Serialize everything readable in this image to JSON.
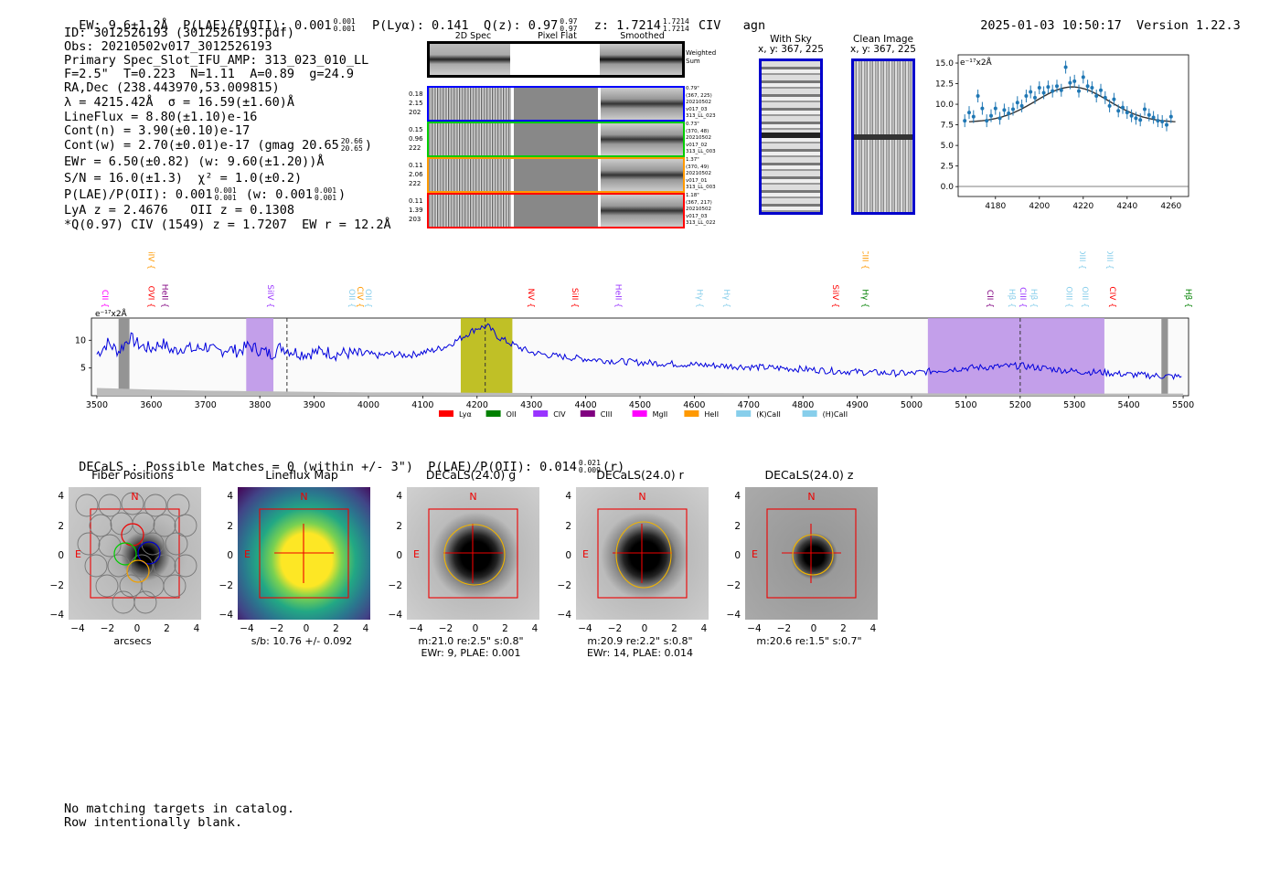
{
  "header": {
    "ew": "EW: 9.6±1.2Å",
    "plae_label": "P(LAE)/P(OII): 0.001",
    "plae_hi": "0.001",
    "plae_lo": "0.001",
    "plya": "P(Lyα): 0.141",
    "qz_label": "Q(z): 0.97",
    "qz_hi": "0.97",
    "qz_lo": "0.97",
    "z_label": "z: 1.7214",
    "z_hi": "1.7214",
    "z_lo": "1.7214",
    "line": "CIV",
    "type": "agn",
    "timestamp": "2025-01-03 10:50:17",
    "version": "Version 1.22.3"
  },
  "info": {
    "id": "ID: 3012526193 (3012526193.pdf)",
    "obs": "Obs: 20210502v017_3012526193",
    "primary": "Primary Spec_Slot_IFU_AMP: 313_023_010_LL",
    "params": "F=2.5\"  T=0.223  N=1.11  A=0.89  g=24.9",
    "radec": "RA,Dec (238.443970,53.009815)",
    "lambda": "λ = 4215.42Å  σ = 16.59(±1.60)Å",
    "lineflux": "LineFlux = 8.80(±1.10)e-16",
    "contn": "Cont(n) = 3.90(±0.10)e-17",
    "contw": "Cont(w) = 2.70(±0.01)e-17 (gmag 20.65",
    "contw_hi": "20.66",
    "contw_lo": "20.65",
    "contw_end": ")",
    "ewr": "EWr = 6.50(±0.82) (w: 9.60(±1.20))Å",
    "sn": "S/N = 16.0(±1.3)  χ² = 1.0(±0.2)",
    "plae": "P(LAE)/P(OII): 0.001",
    "plae_hi": "0.001",
    "plae_lo": "0.001",
    "plae_w": "(w: 0.001",
    "plae_w_hi": "0.001",
    "plae_w_lo": "0.001",
    "plae_w_end": ")",
    "lya": "LyA z = 2.4676   OII z = 0.1308",
    "civ": "*Q(0.97) CIV (1549) z = 1.7207  EW r = 12.2Å"
  },
  "spec2d": {
    "headers": [
      "2D Spec",
      "Pixel Flat",
      "Smoothed"
    ],
    "weighted_label": "Weighted Sum",
    "rows": [
      {
        "left": [
          "0.18",
          "2.15",
          "202"
        ],
        "right": [
          "0.79\"",
          "(367, 225)",
          "20210502",
          "v017_03",
          "313_LL_023"
        ],
        "color": "#0000ff"
      },
      {
        "left": [
          "0.15",
          "0.96",
          "222"
        ],
        "right": [
          "0.73\"",
          "(370, 48)",
          "20210502",
          "v017_02",
          "313_LL_003"
        ],
        "color": "#00cc00"
      },
      {
        "left": [
          "0.11",
          "2.06",
          "222"
        ],
        "right": [
          "1.37\"",
          "(370, 49)",
          "20210502",
          "v017_01",
          "313_LL_003"
        ],
        "color": "#ff9900"
      },
      {
        "left": [
          "0.11",
          "1.39",
          "203"
        ],
        "right": [
          "1.18\"",
          "(367, 217)",
          "20210502",
          "v017_03",
          "313_LL_022"
        ],
        "color": "#ff0000"
      }
    ]
  },
  "sky": {
    "with_sky": "With Sky",
    "with_sky_xy": "x, y: 367, 225",
    "clean": "Clean Image",
    "clean_xy": "x, y: 367, 225"
  },
  "zoom_plot": {
    "unit": "e⁻¹⁷x2Å",
    "yticks": [
      "15.0",
      "12.5",
      "10.0",
      "7.5",
      "5.0",
      "2.5",
      "0.0"
    ],
    "xticks": [
      "4180",
      "4200",
      "4220",
      "4240",
      "4260"
    ]
  },
  "chart_data": {
    "type": "line",
    "title": "",
    "ylabel": "e⁻¹⁷x2Å",
    "xlabel": "",
    "xlim": [
      3490,
      5510
    ],
    "ylim": [
      0,
      14
    ],
    "xticks": [
      3500,
      3600,
      3700,
      3800,
      3900,
      4000,
      4100,
      4200,
      4300,
      4400,
      4500,
      4600,
      4700,
      4800,
      4900,
      5000,
      5100,
      5200,
      5300,
      5400,
      5500
    ],
    "yticks": [
      5,
      10
    ],
    "series": [
      {
        "name": "flux",
        "color": "#0000dd",
        "x": [
          3500,
          3520,
          3540,
          3560,
          3580,
          3600,
          3620,
          3640,
          3660,
          3680,
          3700,
          3720,
          3740,
          3760,
          3780,
          3800,
          3820,
          3840,
          3860,
          3880,
          3900,
          3920,
          3940,
          3960,
          3980,
          4000,
          4020,
          4040,
          4060,
          4080,
          4100,
          4120,
          4140,
          4160,
          4180,
          4200,
          4220,
          4240,
          4260,
          4280,
          4300,
          4340,
          4380,
          4420,
          4460,
          4500,
          4550,
          4600,
          4650,
          4700,
          4750,
          4800,
          4850,
          4900,
          4950,
          5000,
          5050,
          5100,
          5150,
          5200,
          5250,
          5300,
          5350,
          5400,
          5450,
          5500
        ],
        "y": [
          7.5,
          9.5,
          8,
          10.5,
          9,
          8.5,
          9.5,
          8,
          8.8,
          8.2,
          9,
          7.8,
          8.5,
          8,
          9,
          8.2,
          7.5,
          8.8,
          8,
          7.6,
          7.8,
          8,
          7.5,
          7.7,
          7.4,
          7.5,
          7.2,
          7.6,
          7.3,
          7.4,
          7.8,
          8.2,
          8.8,
          9.8,
          11,
          12.2,
          12.5,
          10.5,
          9.5,
          8.6,
          7.8,
          7.2,
          6.8,
          6.5,
          6.2,
          6,
          5.8,
          5.6,
          5.4,
          5.2,
          5,
          4.8,
          4.5,
          4.3,
          4.1,
          4,
          4.6,
          5,
          5.2,
          5.4,
          4.9,
          4.4,
          4.2,
          3.8,
          3.6,
          3.4
        ]
      },
      {
        "name": "sky",
        "color": "#bbbbbb",
        "x": [
          3500,
          3600,
          3700,
          3800,
          3900,
          4000,
          4100,
          4200,
          4300,
          4400,
          4500,
          4600,
          4700,
          4800,
          4900,
          5000,
          5100,
          5200,
          5300,
          5400,
          5500
        ],
        "y": [
          1.4,
          1.1,
          0.9,
          0.8,
          0.7,
          0.6,
          0.6,
          0.55,
          0.5,
          0.5,
          0.5,
          0.5,
          0.45,
          0.45,
          0.45,
          0.45,
          0.4,
          0.4,
          0.4,
          0.4,
          0.4
        ]
      }
    ],
    "shaded_regions": [
      {
        "from": 3775,
        "to": 3825,
        "color": "#b98ee6"
      },
      {
        "from": 4170,
        "to": 4265,
        "color": "#b5b500"
      },
      {
        "from": 5030,
        "to": 5355,
        "color": "#b98ee6"
      },
      {
        "from": 3540,
        "to": 3560,
        "color": "#888888"
      },
      {
        "from": 5460,
        "to": 5472,
        "color": "#888888"
      }
    ],
    "vlines": [
      3850,
      4215,
      5200
    ],
    "line_labels": [
      {
        "x": 3505,
        "text": "CII",
        "color": "#ff00ff",
        "row": 1
      },
      {
        "x": 3590,
        "text": "SiIV",
        "color": "#ff9900",
        "row": 0
      },
      {
        "x": 3590,
        "text": "OVI",
        "color": "#ff0000",
        "row": 1
      },
      {
        "x": 3615,
        "text": "HeII",
        "color": "#800080",
        "row": 1
      },
      {
        "x": 3810,
        "text": "SiIV",
        "color": "#9933ff",
        "row": 1
      },
      {
        "x": 3960,
        "text": "OII",
        "color": "#87ceeb",
        "row": 1
      },
      {
        "x": 3975,
        "text": "CIV",
        "color": "#ff9900",
        "row": 1
      },
      {
        "x": 3990,
        "text": "OII",
        "color": "#87ceeb",
        "row": 1
      },
      {
        "x": 4290,
        "text": "NV",
        "color": "#ff0000",
        "row": 1
      },
      {
        "x": 4370,
        "text": "SiII",
        "color": "#ff0000",
        "row": 1
      },
      {
        "x": 4450,
        "text": "HeII",
        "color": "#9933ff",
        "row": 1
      },
      {
        "x": 4600,
        "text": "Hγ",
        "color": "#87ceeb",
        "row": 1
      },
      {
        "x": 4650,
        "text": "Hγ",
        "color": "#87ceeb",
        "row": 1
      },
      {
        "x": 4850,
        "text": "SiIV",
        "color": "#ff0000",
        "row": 1
      },
      {
        "x": 4905,
        "text": "CIII",
        "color": "#ff9900",
        "row": 0
      },
      {
        "x": 4905,
        "text": "Hγ",
        "color": "#008000",
        "row": 1
      },
      {
        "x": 5135,
        "text": "CII",
        "color": "#800080",
        "row": 1
      },
      {
        "x": 5175,
        "text": "Hβ",
        "color": "#87ceeb",
        "row": 1
      },
      {
        "x": 5195,
        "text": "CIII",
        "color": "#9933ff",
        "row": 1
      },
      {
        "x": 5215,
        "text": "Hβ",
        "color": "#87ceeb",
        "row": 1
      },
      {
        "x": 5280,
        "text": "OIII",
        "color": "#87ceeb",
        "row": 1
      },
      {
        "x": 5305,
        "text": "OIII",
        "color": "#87ceeb",
        "row": 0
      },
      {
        "x": 5310,
        "text": "OIII",
        "color": "#87ceeb",
        "row": 1
      },
      {
        "x": 5355,
        "text": "OIII",
        "color": "#87ceeb",
        "row": 0
      },
      {
        "x": 5360,
        "text": "CIV",
        "color": "#ff0000",
        "row": 1
      },
      {
        "x": 5500,
        "text": "Hβ",
        "color": "#008000",
        "row": 1
      }
    ],
    "legend": [
      {
        "label": "Lyα",
        "color": "#ff0000"
      },
      {
        "label": "OII",
        "color": "#008000"
      },
      {
        "label": "CIV",
        "color": "#9933ff"
      },
      {
        "label": "CIII",
        "color": "#800080"
      },
      {
        "label": "MgII",
        "color": "#ff00ff"
      },
      {
        "label": "HeII",
        "color": "#ff9900"
      },
      {
        "label": "(K)CaII",
        "color": "#87ceeb"
      },
      {
        "label": "(H)CaII",
        "color": "#87ceeb"
      }
    ]
  },
  "decals": {
    "header": "DECaLS : Possible Matches = 0 (within +/- 3\")  P(LAE)/P(OII): 0.014",
    "header_hi": "0.021",
    "header_lo": "0.009",
    "header_end": "(r)",
    "panels": [
      {
        "title": "Fiber Positions",
        "caption1": "arcsecs",
        "caption2": ""
      },
      {
        "title": "Lineflux Map",
        "caption1": "s/b: 10.76 +/- 0.092",
        "caption2": ""
      },
      {
        "title": "DECaLS(24.0) g",
        "caption1": "m:21.0   re:2.5\"  s:0.8\"",
        "caption2": "EWr: 9, PLAE: 0.001"
      },
      {
        "title": "DECaLS(24.0) r",
        "caption1": "m:20.9   re:2.2\"  s:0.8\"",
        "caption2": "EWr: 14, PLAE: 0.014"
      },
      {
        "title": "DECaLS(24.0) z",
        "caption1": "m:20.6   re:1.5\"  s:0.7\"",
        "caption2": ""
      }
    ],
    "yticks": [
      "4",
      "2",
      "0",
      "−2",
      "−4"
    ],
    "xticks": [
      "−4",
      "−2",
      "0",
      "2",
      "4"
    ],
    "n_label": "N",
    "e_label": "E"
  },
  "footer": {
    "line1": "No matching targets in catalog.",
    "line2": "Row intentionally blank."
  }
}
